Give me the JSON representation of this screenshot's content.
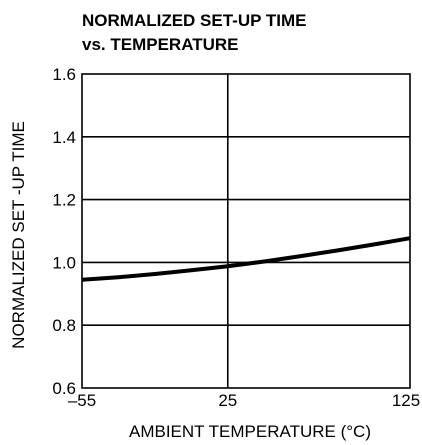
{
  "chart_data": {
    "type": "line",
    "title_line1": "NORMALIZED SET-UP TIME",
    "title_line2": "vs. TEMPERATURE",
    "xlabel": "AMBIENT TEMPERATURE (°C)",
    "ylabel": "NORMALIZED SET -UP TIME",
    "xlim": [
      -55,
      125
    ],
    "ylim": [
      0.6,
      1.6
    ],
    "x_ticks": [
      -55,
      25,
      125
    ],
    "x_tick_labels": [
      "–55",
      "25",
      "125"
    ],
    "y_ticks": [
      0.6,
      0.8,
      1.0,
      1.2,
      1.4,
      1.6
    ],
    "y_tick_labels": [
      "0.6",
      "0.8",
      "1.0",
      "1.2",
      "1.4",
      "1.6"
    ],
    "grid": true,
    "series": [
      {
        "x": [
          -55,
          -35,
          -15,
          5,
          25,
          45,
          65,
          85,
          105,
          125
        ],
        "y": [
          0.945,
          0.953,
          0.963,
          0.975,
          0.988,
          1.003,
          1.02,
          1.038,
          1.057,
          1.077
        ]
      }
    ]
  }
}
